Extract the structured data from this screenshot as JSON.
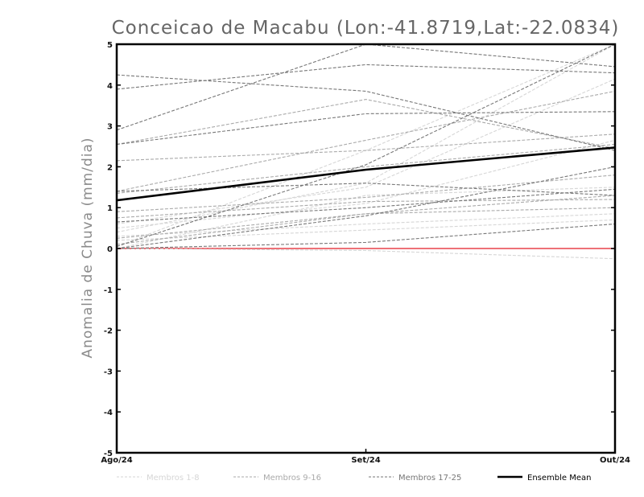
{
  "chart_data": {
    "type": "line",
    "title": "Conceicao de Macabu (Lon:-41.8719,Lat:-22.0834)",
    "ylabel": "Anomalia de Chuva (mm/dia)",
    "xlabel": "",
    "categories": [
      "Ago/24",
      "Set/24",
      "Out/24"
    ],
    "ylim": [
      -5,
      5
    ],
    "yticks": [
      "-5",
      "-4",
      "-3",
      "-2",
      "-1",
      "0",
      "1",
      "2",
      "3",
      "4",
      "5"
    ],
    "grid": false,
    "legend_position": "bottom",
    "reference_line": {
      "value": 0,
      "color": "#e8424a"
    },
    "legend": [
      {
        "label": "Membros 1-8",
        "color": "#d6d6d6",
        "style": "dashed"
      },
      {
        "label": "Membros 9-16",
        "color": "#aaaaaa",
        "style": "dashed"
      },
      {
        "label": "Membros 17-25",
        "color": "#777777",
        "style": "dashed"
      },
      {
        "label": "Ensemble Mean",
        "color": "#000000",
        "style": "solid"
      }
    ],
    "groups": [
      {
        "label": "Membros 1-8",
        "color": "#d6d6d6",
        "members": [
          [
            0.05,
            2.4,
            5.0
          ],
          [
            0.0,
            1.3,
            1.5
          ],
          [
            0.3,
            0.6,
            0.85
          ],
          [
            0.4,
            1.6,
            5.0
          ],
          [
            0.0,
            -0.05,
            -0.25
          ],
          [
            0.6,
            1.5,
            4.15
          ],
          [
            0.2,
            0.45,
            0.7
          ],
          [
            0.5,
            1.1,
            2.65
          ]
        ]
      },
      {
        "label": "Membros 9-16",
        "color": "#aaaaaa",
        "members": [
          [
            2.55,
            3.65,
            2.45
          ],
          [
            2.15,
            2.4,
            2.8
          ],
          [
            1.35,
            2.0,
            2.55
          ],
          [
            0.9,
            1.25,
            1.8
          ],
          [
            0.1,
            0.85,
            1.0
          ],
          [
            1.4,
            2.65,
            3.85
          ],
          [
            0.75,
            1.15,
            1.2
          ],
          [
            0.25,
            0.85,
            1.3
          ]
        ]
      },
      {
        "label": "Membros 17-25",
        "color": "#777777",
        "members": [
          [
            2.9,
            5.0,
            4.45
          ],
          [
            4.25,
            3.85,
            2.4
          ],
          [
            3.9,
            4.5,
            4.3
          ],
          [
            2.55,
            3.3,
            3.35
          ],
          [
            1.4,
            1.6,
            1.3
          ],
          [
            0.0,
            0.8,
            2.0
          ],
          [
            0.05,
            2.05,
            5.0
          ],
          [
            0.65,
            1.0,
            1.45
          ],
          [
            0.0,
            0.15,
            0.6
          ]
        ]
      }
    ],
    "series": [
      {
        "name": "Ensemble Mean",
        "values": [
          1.18,
          1.93,
          2.47
        ],
        "color": "#000000"
      }
    ]
  }
}
